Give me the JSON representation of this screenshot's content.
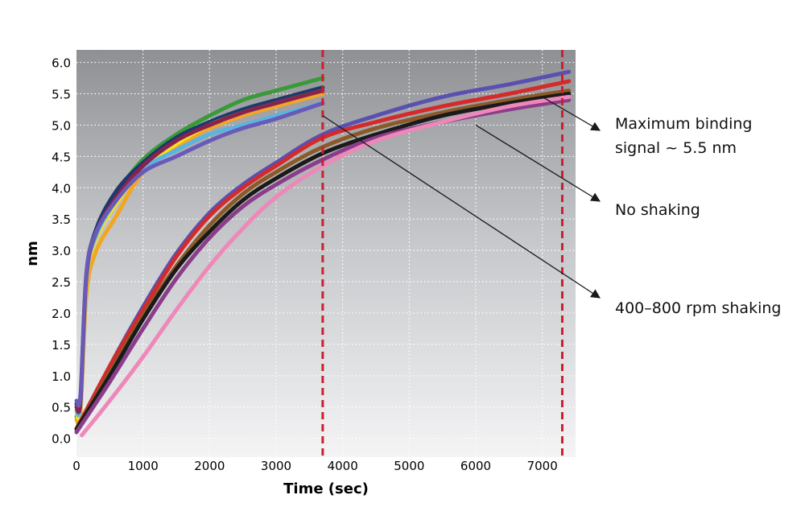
{
  "chart_data": {
    "type": "line",
    "title": "",
    "xlabel": "Time (sec)",
    "ylabel": "nm",
    "xlim": [
      0,
      7500
    ],
    "ylim": [
      -0.3,
      6.2
    ],
    "xticks": [
      0,
      1000,
      2000,
      3000,
      4000,
      5000,
      6000,
      7000
    ],
    "yticks": [
      0.0,
      0.5,
      1.0,
      1.5,
      2.0,
      2.5,
      3.0,
      3.5,
      4.0,
      4.5,
      5.0,
      5.5,
      6.0
    ],
    "ytick_labels": [
      "0.0",
      "0.5",
      "1.0",
      "1.5",
      "2.0",
      "2.5",
      "3.0",
      "3.5",
      "4.0",
      "4.5",
      "5.0",
      "5.5",
      "6.0"
    ],
    "grid": true,
    "vlines": [
      3700,
      7300
    ],
    "vline_color": "#cc1f2d",
    "series": [
      {
        "color": "#3a9a3a",
        "x": [
          0,
          60,
          150,
          300,
          600,
          1000,
          1500,
          2000,
          2500,
          3000,
          3700
        ],
        "y": [
          0.35,
          0.5,
          2.5,
          3.3,
          3.9,
          4.45,
          4.85,
          5.15,
          5.4,
          5.55,
          5.75
        ]
      },
      {
        "color": "#1c3a6b",
        "x": [
          0,
          60,
          150,
          300,
          600,
          1000,
          1500,
          2000,
          2500,
          3000,
          3700
        ],
        "y": [
          0.55,
          0.6,
          2.6,
          3.35,
          3.95,
          4.4,
          4.8,
          5.05,
          5.25,
          5.4,
          5.6
        ]
      },
      {
        "color": "#f2a623",
        "x": [
          0,
          60,
          150,
          300,
          600,
          1000,
          1500,
          2000,
          2500,
          3000,
          3700
        ],
        "y": [
          0.3,
          0.4,
          2.3,
          3.0,
          3.55,
          4.25,
          4.65,
          4.95,
          5.15,
          5.3,
          5.5
        ]
      },
      {
        "color": "#f4e024",
        "x": [
          0,
          60,
          150,
          300,
          600,
          1000,
          1500,
          2000,
          2500,
          3000,
          3700
        ],
        "y": [
          0.4,
          0.5,
          2.5,
          3.2,
          3.75,
          4.3,
          4.7,
          5.0,
          5.2,
          5.35,
          5.55
        ]
      },
      {
        "color": "#5ab4e0",
        "x": [
          0,
          60,
          150,
          300,
          600,
          1000,
          1500,
          2000,
          2500,
          3000,
          3700
        ],
        "y": [
          0.45,
          0.55,
          2.55,
          3.25,
          3.8,
          4.3,
          4.6,
          4.85,
          5.0,
          5.15,
          5.35
        ]
      },
      {
        "color": "#8a2250",
        "x": [
          0,
          60,
          150,
          300,
          600,
          1000,
          1500,
          2000,
          2500,
          3000,
          3700
        ],
        "y": [
          0.5,
          0.6,
          2.6,
          3.3,
          3.85,
          4.35,
          4.75,
          5.0,
          5.2,
          5.35,
          5.55
        ]
      },
      {
        "color": "#6a5ab8",
        "x": [
          0,
          60,
          150,
          300,
          600,
          1000,
          1500,
          2000,
          2500,
          3000,
          3700
        ],
        "y": [
          0.6,
          0.7,
          2.65,
          3.3,
          3.8,
          4.25,
          4.5,
          4.75,
          4.95,
          5.1,
          5.35
        ]
      },
      {
        "color": "#5a50b0",
        "x": [
          0,
          500,
          1000,
          1500,
          2000,
          2500,
          3000,
          3700,
          4500,
          5500,
          6500,
          7400
        ],
        "y": [
          0.1,
          1.15,
          2.1,
          2.95,
          3.6,
          4.05,
          4.4,
          4.85,
          5.15,
          5.45,
          5.65,
          5.85
        ]
      },
      {
        "color": "#d42a2a",
        "x": [
          0,
          500,
          1000,
          1500,
          2000,
          2500,
          3000,
          3700,
          4500,
          5500,
          6500,
          7400
        ],
        "y": [
          0.15,
          1.15,
          2.05,
          2.9,
          3.55,
          4.0,
          4.35,
          4.8,
          5.05,
          5.3,
          5.5,
          5.7
        ]
      },
      {
        "color": "#8b5a2b",
        "x": [
          0,
          500,
          1000,
          1500,
          2000,
          2500,
          3000,
          3700,
          4500,
          5500,
          6500,
          7400
        ],
        "y": [
          0.15,
          1.05,
          1.95,
          2.75,
          3.4,
          3.9,
          4.25,
          4.65,
          4.95,
          5.2,
          5.4,
          5.55
        ]
      },
      {
        "color": "#1a1a1a",
        "x": [
          0,
          500,
          1000,
          1500,
          2000,
          2500,
          3000,
          3700,
          4500,
          5500,
          6500,
          7400
        ],
        "y": [
          0.15,
          1.0,
          1.9,
          2.7,
          3.3,
          3.8,
          4.15,
          4.55,
          4.85,
          5.15,
          5.35,
          5.5
        ]
      },
      {
        "color": "#8b3c8b",
        "x": [
          0,
          500,
          1000,
          1500,
          2000,
          2500,
          3000,
          3700,
          4500,
          5500,
          6500,
          7400
        ],
        "y": [
          0.1,
          0.9,
          1.75,
          2.55,
          3.2,
          3.7,
          4.05,
          4.45,
          4.8,
          5.05,
          5.25,
          5.4
        ]
      },
      {
        "color": "#ee88b8",
        "x": [
          80,
          500,
          1000,
          1500,
          2000,
          2500,
          3000,
          3700,
          4500,
          5500,
          6500,
          7400
        ],
        "y": [
          0.05,
          0.6,
          1.3,
          2.05,
          2.75,
          3.35,
          3.85,
          4.35,
          4.75,
          5.05,
          5.3,
          5.45
        ]
      }
    ],
    "annotations": [
      {
        "lines": [
          "Maximum binding",
          "signal ~ 5.5 nm"
        ],
        "arrow_to": [
          7000,
          5.45
        ]
      },
      {
        "lines": [
          "No shaking"
        ],
        "arrow_to": [
          6000,
          5.0
        ]
      },
      {
        "lines": [
          "400–800 rpm shaking"
        ],
        "arrow_to": [
          3700,
          5.15
        ]
      }
    ]
  }
}
